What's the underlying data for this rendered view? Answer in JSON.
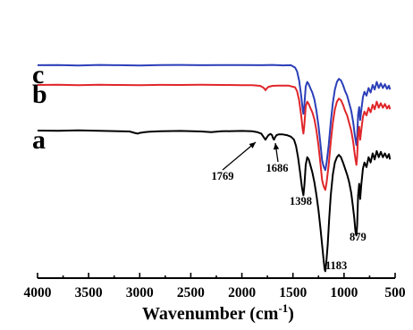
{
  "chart_data": {
    "type": "line",
    "xlabel": "Wavenumber (cm",
    "xlabel_sup": "-1",
    "xlabel_tail": ")",
    "ylabel": "",
    "xlim": [
      4000,
      500
    ],
    "x_reversed": true,
    "xticks": [
      4000,
      3500,
      3000,
      2500,
      2000,
      1500,
      1000,
      500
    ],
    "xtick_labels": [
      "4000",
      "3500",
      "3000",
      "2500",
      "2000",
      "1500",
      "1000",
      "500"
    ],
    "y_ticks_shown": false,
    "grid": false,
    "series": [
      {
        "name": "c",
        "color": "#2b3fb8",
        "offset": 0.86,
        "points": [
          [
            4000,
            0.0
          ],
          [
            3800,
            0.002
          ],
          [
            3600,
            -0.004
          ],
          [
            3400,
            0.003
          ],
          [
            3200,
            0.0
          ],
          [
            3000,
            -0.005
          ],
          [
            2800,
            0.001
          ],
          [
            2600,
            0.003
          ],
          [
            2400,
            0.0
          ],
          [
            2200,
            0.002
          ],
          [
            2000,
            0.001
          ],
          [
            1800,
            0.0
          ],
          [
            1700,
            0.003
          ],
          [
            1600,
            -0.002
          ],
          [
            1520,
            0.0
          ],
          [
            1480,
            -0.03
          ],
          [
            1460,
            -0.08
          ],
          [
            1440,
            -0.2
          ],
          [
            1420,
            -0.4
          ],
          [
            1405,
            -0.58
          ],
          [
            1398,
            -0.64
          ],
          [
            1390,
            -0.55
          ],
          [
            1375,
            -0.28
          ],
          [
            1360,
            -0.22
          ],
          [
            1345,
            -0.25
          ],
          [
            1330,
            -0.3
          ],
          [
            1310,
            -0.36
          ],
          [
            1290,
            -0.45
          ],
          [
            1270,
            -0.6
          ],
          [
            1250,
            -0.8
          ],
          [
            1230,
            -1.05
          ],
          [
            1215,
            -1.25
          ],
          [
            1200,
            -1.33
          ],
          [
            1183,
            -1.38
          ],
          [
            1170,
            -1.28
          ],
          [
            1150,
            -1.05
          ],
          [
            1130,
            -0.75
          ],
          [
            1110,
            -0.5
          ],
          [
            1090,
            -0.32
          ],
          [
            1070,
            -0.22
          ],
          [
            1050,
            -0.18
          ],
          [
            1030,
            -0.2
          ],
          [
            1010,
            -0.26
          ],
          [
            990,
            -0.34
          ],
          [
            970,
            -0.4
          ],
          [
            950,
            -0.5
          ],
          [
            930,
            -0.6
          ],
          [
            910,
            -0.75
          ],
          [
            895,
            -0.92
          ],
          [
            885,
            -1.0
          ],
          [
            879,
            -1.05
          ],
          [
            872,
            -0.95
          ],
          [
            862,
            -0.65
          ],
          [
            852,
            -0.55
          ],
          [
            842,
            -0.72
          ],
          [
            832,
            -0.6
          ],
          [
            815,
            -0.42
          ],
          [
            800,
            -0.35
          ],
          [
            780,
            -0.4
          ],
          [
            760,
            -0.3
          ],
          [
            740,
            -0.36
          ],
          [
            720,
            -0.26
          ],
          [
            700,
            -0.32
          ],
          [
            680,
            -0.22
          ],
          [
            660,
            -0.3
          ],
          [
            640,
            -0.24
          ],
          [
            620,
            -0.3
          ],
          [
            600,
            -0.25
          ],
          [
            580,
            -0.31
          ],
          [
            560,
            -0.27
          ],
          [
            550,
            -0.32
          ]
        ]
      },
      {
        "name": "b",
        "color": "#e0262a",
        "offset": 0.6,
        "points": [
          [
            4000,
            0.0
          ],
          [
            3800,
            0.002
          ],
          [
            3600,
            -0.003
          ],
          [
            3400,
            0.002
          ],
          [
            3200,
            0.0
          ],
          [
            3000,
            -0.004
          ],
          [
            2800,
            0.001
          ],
          [
            2600,
            0.0
          ],
          [
            2400,
            0.002
          ],
          [
            2200,
            0.0
          ],
          [
            2000,
            -0.002
          ],
          [
            1900,
            -0.004
          ],
          [
            1820,
            -0.012
          ],
          [
            1790,
            -0.035
          ],
          [
            1775,
            -0.055
          ],
          [
            1769,
            -0.07
          ],
          [
            1760,
            -0.05
          ],
          [
            1740,
            -0.025
          ],
          [
            1700,
            -0.012
          ],
          [
            1650,
            -0.01
          ],
          [
            1600,
            -0.008
          ],
          [
            1540,
            -0.01
          ],
          [
            1480,
            -0.03
          ],
          [
            1460,
            -0.08
          ],
          [
            1440,
            -0.2
          ],
          [
            1420,
            -0.4
          ],
          [
            1405,
            -0.58
          ],
          [
            1398,
            -0.64
          ],
          [
            1390,
            -0.55
          ],
          [
            1375,
            -0.28
          ],
          [
            1360,
            -0.22
          ],
          [
            1345,
            -0.25
          ],
          [
            1330,
            -0.3
          ],
          [
            1310,
            -0.36
          ],
          [
            1290,
            -0.45
          ],
          [
            1270,
            -0.6
          ],
          [
            1250,
            -0.8
          ],
          [
            1230,
            -1.05
          ],
          [
            1215,
            -1.25
          ],
          [
            1200,
            -1.33
          ],
          [
            1183,
            -1.38
          ],
          [
            1170,
            -1.28
          ],
          [
            1150,
            -1.05
          ],
          [
            1130,
            -0.75
          ],
          [
            1110,
            -0.5
          ],
          [
            1090,
            -0.32
          ],
          [
            1070,
            -0.22
          ],
          [
            1050,
            -0.18
          ],
          [
            1030,
            -0.2
          ],
          [
            1010,
            -0.26
          ],
          [
            990,
            -0.34
          ],
          [
            970,
            -0.4
          ],
          [
            950,
            -0.5
          ],
          [
            930,
            -0.6
          ],
          [
            910,
            -0.75
          ],
          [
            895,
            -0.92
          ],
          [
            885,
            -1.0
          ],
          [
            879,
            -1.05
          ],
          [
            872,
            -0.95
          ],
          [
            862,
            -0.65
          ],
          [
            852,
            -0.55
          ],
          [
            842,
            -0.72
          ],
          [
            832,
            -0.6
          ],
          [
            815,
            -0.42
          ],
          [
            800,
            -0.35
          ],
          [
            780,
            -0.4
          ],
          [
            760,
            -0.3
          ],
          [
            740,
            -0.36
          ],
          [
            720,
            -0.26
          ],
          [
            700,
            -0.32
          ],
          [
            680,
            -0.22
          ],
          [
            660,
            -0.3
          ],
          [
            640,
            -0.24
          ],
          [
            620,
            -0.3
          ],
          [
            600,
            -0.25
          ],
          [
            580,
            -0.31
          ],
          [
            560,
            -0.27
          ],
          [
            550,
            -0.32
          ]
        ]
      },
      {
        "name": "a",
        "color": "#000000",
        "offset": 0.0,
        "points": [
          [
            4000,
            0.0
          ],
          [
            3800,
            -0.003
          ],
          [
            3600,
            0.002
          ],
          [
            3400,
            -0.004
          ],
          [
            3200,
            -0.008
          ],
          [
            3100,
            -0.012
          ],
          [
            3050,
            -0.03
          ],
          [
            3020,
            -0.04
          ],
          [
            3000,
            -0.03
          ],
          [
            2950,
            -0.02
          ],
          [
            2900,
            -0.015
          ],
          [
            2800,
            -0.01
          ],
          [
            2600,
            -0.005
          ],
          [
            2400,
            -0.012
          ],
          [
            2300,
            -0.02
          ],
          [
            2200,
            -0.01
          ],
          [
            2000,
            -0.005
          ],
          [
            1900,
            -0.01
          ],
          [
            1850,
            -0.02
          ],
          [
            1810,
            -0.04
          ],
          [
            1790,
            -0.08
          ],
          [
            1775,
            -0.11
          ],
          [
            1769,
            -0.12
          ],
          [
            1760,
            -0.1
          ],
          [
            1740,
            -0.06
          ],
          [
            1720,
            -0.045
          ],
          [
            1705,
            -0.06
          ],
          [
            1695,
            -0.1
          ],
          [
            1686,
            -0.12
          ],
          [
            1676,
            -0.09
          ],
          [
            1660,
            -0.06
          ],
          [
            1640,
            -0.05
          ],
          [
            1600,
            -0.05
          ],
          [
            1560,
            -0.06
          ],
          [
            1520,
            -0.08
          ],
          [
            1490,
            -0.12
          ],
          [
            1470,
            -0.2
          ],
          [
            1450,
            -0.35
          ],
          [
            1430,
            -0.55
          ],
          [
            1412,
            -0.75
          ],
          [
            1398,
            -0.85
          ],
          [
            1388,
            -0.72
          ],
          [
            1375,
            -0.45
          ],
          [
            1360,
            -0.35
          ],
          [
            1345,
            -0.38
          ],
          [
            1330,
            -0.45
          ],
          [
            1310,
            -0.55
          ],
          [
            1290,
            -0.68
          ],
          [
            1270,
            -0.85
          ],
          [
            1250,
            -1.05
          ],
          [
            1230,
            -1.3
          ],
          [
            1215,
            -1.5
          ],
          [
            1200,
            -1.7
          ],
          [
            1190,
            -1.82
          ],
          [
            1183,
            -1.85
          ],
          [
            1175,
            -1.75
          ],
          [
            1160,
            -1.5
          ],
          [
            1145,
            -1.15
          ],
          [
            1130,
            -0.85
          ],
          [
            1110,
            -0.58
          ],
          [
            1090,
            -0.42
          ],
          [
            1070,
            -0.35
          ],
          [
            1050,
            -0.32
          ],
          [
            1030,
            -0.35
          ],
          [
            1010,
            -0.42
          ],
          [
            990,
            -0.5
          ],
          [
            970,
            -0.58
          ],
          [
            950,
            -0.68
          ],
          [
            930,
            -0.82
          ],
          [
            915,
            -0.98
          ],
          [
            900,
            -1.15
          ],
          [
            890,
            -1.3
          ],
          [
            884,
            -1.36
          ],
          [
            879,
            -1.38
          ],
          [
            872,
            -1.25
          ],
          [
            862,
            -0.85
          ],
          [
            852,
            -0.7
          ],
          [
            842,
            -0.9
          ],
          [
            832,
            -0.72
          ],
          [
            815,
            -0.5
          ],
          [
            800,
            -0.42
          ],
          [
            780,
            -0.48
          ],
          [
            760,
            -0.35
          ],
          [
            740,
            -0.42
          ],
          [
            720,
            -0.3
          ],
          [
            700,
            -0.38
          ],
          [
            680,
            -0.27
          ],
          [
            660,
            -0.35
          ],
          [
            640,
            -0.28
          ],
          [
            620,
            -0.35
          ],
          [
            600,
            -0.3
          ],
          [
            580,
            -0.36
          ],
          [
            560,
            -0.31
          ],
          [
            550,
            -0.38
          ]
        ]
      }
    ],
    "annotations": [
      {
        "text": "1769",
        "x": 1769,
        "series": "a",
        "arrow": true
      },
      {
        "text": "1686",
        "x": 1686,
        "series": "a",
        "arrow": true
      },
      {
        "text": "1398",
        "x": 1398,
        "series": "a",
        "arrow": false
      },
      {
        "text": "1183",
        "x": 1183,
        "series": "a",
        "arrow": false
      },
      {
        "text": "879",
        "x": 879,
        "series": "a",
        "arrow": false
      }
    ]
  }
}
